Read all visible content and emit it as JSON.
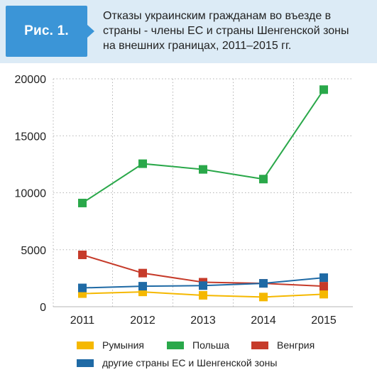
{
  "figure": {
    "badge": "Рис. 1.",
    "title_lines": [
      "Отказы украинским гражданам во въезде в",
      "страны - члены ЕС и страны Шенгенской зоны",
      "на внешних границах, 2011–2015 гг."
    ]
  },
  "chart_data": {
    "type": "line",
    "title": "Отказы украинским гражданам во въезде в страны - члены ЕС и страны Шенгенской зоны на внешних границах, 2011–2015 гг.",
    "x": [
      "2011",
      "2012",
      "2013",
      "2014",
      "2015"
    ],
    "ylim": [
      0,
      20000
    ],
    "yticks": [
      0,
      5000,
      10000,
      15000,
      20000
    ],
    "grid": true,
    "legend_position": "bottom",
    "series": [
      {
        "name": "Румыния",
        "color": "#f5b800",
        "values": [
          1150,
          1300,
          1000,
          850,
          1100
        ]
      },
      {
        "name": "Польша",
        "color": "#2aa84a",
        "values": [
          9100,
          12550,
          12050,
          11200,
          19050
        ]
      },
      {
        "name": "Венгрия",
        "color": "#c63b2a",
        "values": [
          4550,
          2950,
          2150,
          2050,
          1800
        ]
      },
      {
        "name": "другие страны ЕС и Шенгенской зоны",
        "color": "#1f6aa5",
        "values": [
          1650,
          1800,
          1850,
          2050,
          2550
        ]
      }
    ]
  }
}
